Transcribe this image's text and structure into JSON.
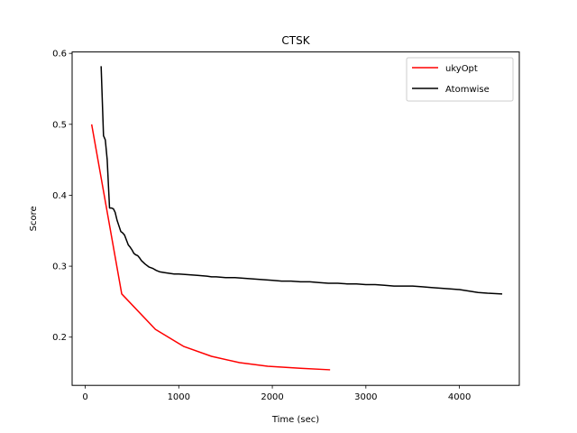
{
  "chart_data": {
    "type": "line",
    "title": "CTSK",
    "xlabel": "Time (sec)",
    "ylabel": "Score",
    "xlim": [
      -140,
      4640
    ],
    "ylim": [
      0.132,
      0.602
    ],
    "xticks": [
      0,
      1000,
      2000,
      3000,
      4000
    ],
    "yticks": [
      0.2,
      0.3,
      0.4,
      0.5,
      0.6
    ],
    "grid": false,
    "legend_position": "top-right",
    "series": [
      {
        "name": "ukyOpt",
        "color": "#ff0000",
        "x": [
          70,
          390,
          750,
          1050,
          1350,
          1650,
          1950,
          2300,
          2610
        ],
        "y": [
          0.499,
          0.261,
          0.211,
          0.187,
          0.173,
          0.164,
          0.159,
          0.156,
          0.154
        ]
      },
      {
        "name": "Atomwise",
        "color": "#000000",
        "x": [
          170,
          195,
          215,
          235,
          260,
          280,
          300,
          320,
          340,
          360,
          380,
          400,
          420,
          440,
          460,
          480,
          500,
          520,
          540,
          560,
          580,
          600,
          640,
          680,
          720,
          760,
          800,
          850,
          900,
          950,
          1000,
          1100,
          1200,
          1300,
          1350,
          1400,
          1500,
          1600,
          1700,
          1800,
          1900,
          2000,
          2100,
          2200,
          2300,
          2400,
          2500,
          2600,
          2700,
          2800,
          2900,
          3000,
          3100,
          3200,
          3300,
          3400,
          3500,
          3600,
          3700,
          3800,
          3900,
          4000,
          4100,
          4200,
          4300,
          4450
        ],
        "y": [
          0.581,
          0.484,
          0.478,
          0.45,
          0.382,
          0.382,
          0.381,
          0.376,
          0.365,
          0.357,
          0.349,
          0.347,
          0.344,
          0.337,
          0.33,
          0.327,
          0.323,
          0.318,
          0.316,
          0.315,
          0.312,
          0.308,
          0.303,
          0.299,
          0.297,
          0.294,
          0.292,
          0.291,
          0.29,
          0.289,
          0.289,
          0.288,
          0.287,
          0.286,
          0.285,
          0.285,
          0.284,
          0.284,
          0.283,
          0.282,
          0.281,
          0.28,
          0.279,
          0.279,
          0.278,
          0.278,
          0.277,
          0.276,
          0.276,
          0.275,
          0.275,
          0.274,
          0.274,
          0.273,
          0.272,
          0.272,
          0.272,
          0.271,
          0.27,
          0.269,
          0.268,
          0.267,
          0.265,
          0.263,
          0.262,
          0.261
        ]
      }
    ]
  }
}
